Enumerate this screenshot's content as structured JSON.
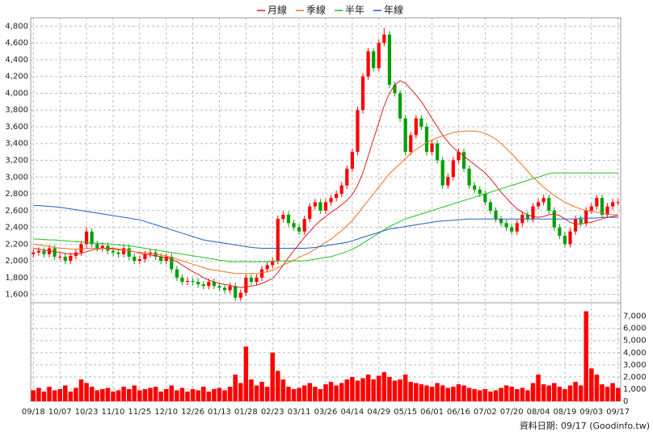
{
  "chart_data": {
    "type": "candlestick",
    "note": "資料日期: 09/17 (Goodinfo.tw)",
    "categories": [
      "09/18",
      null,
      null,
      null,
      null,
      "10/07",
      null,
      null,
      null,
      null,
      "10/23",
      null,
      null,
      null,
      null,
      "11/10",
      null,
      null,
      null,
      null,
      "11/25",
      null,
      null,
      null,
      null,
      "12/10",
      null,
      null,
      null,
      null,
      "12/26",
      null,
      null,
      null,
      null,
      "01/13",
      null,
      null,
      null,
      null,
      "01/28",
      null,
      null,
      null,
      null,
      "02/23",
      null,
      null,
      null,
      null,
      "03/11",
      null,
      null,
      null,
      null,
      "03/26",
      null,
      null,
      null,
      null,
      "04/14",
      null,
      null,
      null,
      null,
      "04/29",
      null,
      null,
      null,
      null,
      "05/15",
      null,
      null,
      null,
      null,
      "06/01",
      null,
      null,
      null,
      null,
      "06/16",
      null,
      null,
      null,
      null,
      "07/02",
      null,
      null,
      null,
      null,
      "07/20",
      null,
      null,
      null,
      null,
      "08/04",
      null,
      null,
      null,
      null,
      "08/19",
      null,
      null,
      null,
      null,
      "09/03",
      null,
      null,
      null,
      null,
      "09/17"
    ],
    "up_color": "#ff0000",
    "down_color": "#00a000",
    "ohlc": {
      "open": [
        2080,
        2100,
        2120,
        2080,
        2150,
        2050,
        2050,
        2000,
        2060,
        2100,
        2200,
        2350,
        2200,
        2150,
        2180,
        2120,
        2100,
        2080,
        2150,
        2050,
        2000,
        2020,
        2080,
        2100,
        2050,
        2000,
        2050,
        1900,
        1800,
        1750,
        1760,
        1750,
        1720,
        1700,
        1750,
        1700,
        1680,
        1650,
        1700,
        1560,
        1620,
        1800,
        1750,
        1800,
        1900,
        1950,
        2000,
        2500,
        2550,
        2450,
        2400,
        2350,
        2500,
        2650,
        2700,
        2600,
        2700,
        2750,
        2800,
        2900,
        3100,
        3300,
        3800,
        4200,
        4500,
        4300,
        4600,
        4700,
        4100,
        4000,
        3700,
        3300,
        3500,
        3700,
        3600,
        3300,
        3400,
        3200,
        2900,
        3000,
        3200,
        3300,
        3100,
        2900,
        2850,
        2800,
        2700,
        2600,
        2500,
        2450,
        2400,
        2350,
        2450,
        2550,
        2500,
        2650,
        2700,
        2750,
        2600,
        2400,
        2300,
        2200,
        2350,
        2500,
        2450,
        2600,
        2650,
        2750,
        2550,
        2650,
        2700
      ],
      "high": [
        2140,
        2160,
        2160,
        2190,
        2190,
        2090,
        2090,
        2100,
        2140,
        2240,
        2400,
        2390,
        2240,
        2220,
        2220,
        2160,
        2140,
        2190,
        2190,
        2090,
        2060,
        2120,
        2140,
        2140,
        2090,
        2090,
        2090,
        1940,
        1840,
        1800,
        1800,
        1790,
        1760,
        1790,
        1790,
        1740,
        1720,
        1740,
        1740,
        1660,
        1840,
        1840,
        1840,
        1940,
        1990,
        2040,
        2540,
        2590,
        2590,
        2490,
        2440,
        2540,
        2690,
        2740,
        2740,
        2740,
        2790,
        2840,
        2940,
        3140,
        3340,
        3840,
        4240,
        4540,
        4540,
        4640,
        4780,
        4740,
        4140,
        4040,
        3740,
        3540,
        3740,
        3740,
        3640,
        3440,
        3440,
        3240,
        3040,
        3240,
        3340,
        3340,
        3140,
        2940,
        2890,
        2840,
        2740,
        2640,
        2540,
        2490,
        2440,
        2490,
        2590,
        2590,
        2690,
        2740,
        2790,
        2790,
        2640,
        2440,
        2340,
        2390,
        2540,
        2540,
        2640,
        2690,
        2790,
        2790,
        2690,
        2740,
        2740
      ],
      "low": [
        2040,
        2060,
        2040,
        2040,
        2010,
        2010,
        1960,
        1960,
        2020,
        2060,
        2160,
        2160,
        2110,
        2110,
        2080,
        2060,
        2040,
        2040,
        2010,
        1960,
        1960,
        1980,
        2040,
        2010,
        1960,
        1960,
        1860,
        1760,
        1710,
        1710,
        1710,
        1680,
        1660,
        1660,
        1660,
        1640,
        1610,
        1610,
        1520,
        1520,
        1580,
        1710,
        1710,
        1760,
        1860,
        1910,
        1960,
        2460,
        2410,
        2360,
        2310,
        2310,
        2460,
        2610,
        2560,
        2560,
        2660,
        2710,
        2760,
        2860,
        3060,
        3260,
        3760,
        4160,
        4260,
        4260,
        4560,
        4060,
        3960,
        3660,
        3260,
        3260,
        3460,
        3560,
        3260,
        3260,
        3160,
        2860,
        2860,
        2960,
        3160,
        3060,
        2860,
        2810,
        2760,
        2660,
        2560,
        2460,
        2410,
        2360,
        2310,
        2310,
        2410,
        2460,
        2460,
        2610,
        2660,
        2560,
        2360,
        2260,
        2160,
        2160,
        2310,
        2410,
        2410,
        2560,
        2610,
        2510,
        2510,
        2610,
        2660
      ],
      "close": [
        2100,
        2120,
        2080,
        2150,
        2050,
        2050,
        2000,
        2060,
        2100,
        2200,
        2350,
        2200,
        2150,
        2180,
        2120,
        2100,
        2080,
        2150,
        2050,
        2000,
        2020,
        2080,
        2100,
        2050,
        2000,
        2050,
        1900,
        1800,
        1750,
        1760,
        1750,
        1720,
        1700,
        1750,
        1700,
        1680,
        1650,
        1700,
        1560,
        1620,
        1800,
        1750,
        1800,
        1900,
        1950,
        2000,
        2500,
        2550,
        2450,
        2400,
        2350,
        2500,
        2650,
        2700,
        2600,
        2700,
        2750,
        2800,
        2900,
        3100,
        3300,
        3800,
        4200,
        4500,
        4300,
        4600,
        4700,
        4100,
        4000,
        3700,
        3300,
        3500,
        3700,
        3600,
        3300,
        3400,
        3200,
        2900,
        3000,
        3200,
        3300,
        3100,
        2900,
        2850,
        2800,
        2700,
        2600,
        2500,
        2450,
        2400,
        2350,
        2450,
        2550,
        2500,
        2650,
        2700,
        2750,
        2600,
        2400,
        2300,
        2200,
        2350,
        2500,
        2450,
        2600,
        2650,
        2750,
        2550,
        2650,
        2700,
        2700
      ]
    },
    "series": [
      {
        "name": "月線",
        "color": "#e02020",
        "values": [
          2150,
          2140,
          2130,
          2120,
          2110,
          2100,
          2090,
          2080,
          2080,
          2090,
          2110,
          2130,
          2140,
          2150,
          2150,
          2150,
          2140,
          2130,
          2120,
          2110,
          2090,
          2080,
          2070,
          2060,
          2050,
          2040,
          2020,
          1990,
          1950,
          1910,
          1870,
          1840,
          1800,
          1770,
          1750,
          1730,
          1720,
          1710,
          1690,
          1680,
          1690,
          1700,
          1710,
          1730,
          1760,
          1790,
          1860,
          1950,
          2040,
          2120,
          2200,
          2280,
          2350,
          2420,
          2480,
          2530,
          2580,
          2620,
          2670,
          2720,
          2790,
          2900,
          3050,
          3250,
          3450,
          3650,
          3850,
          4000,
          4100,
          4150,
          4120,
          4050,
          3980,
          3900,
          3800,
          3700,
          3600,
          3500,
          3420,
          3350,
          3300,
          3250,
          3200,
          3150,
          3100,
          3050,
          2980,
          2900,
          2820,
          2750,
          2680,
          2620,
          2580,
          2550,
          2530,
          2520,
          2530,
          2550,
          2560,
          2540,
          2500,
          2460,
          2440,
          2440,
          2450,
          2460,
          2480,
          2500,
          2520,
          2530,
          2540
        ]
      },
      {
        "name": "季線",
        "color": "#f07020",
        "values": [
          2200,
          2190,
          2180,
          2170,
          2160,
          2150,
          2150,
          2140,
          2140,
          2140,
          2150,
          2150,
          2150,
          2150,
          2140,
          2140,
          2130,
          2130,
          2120,
          2110,
          2100,
          2100,
          2090,
          2080,
          2070,
          2060,
          2040,
          2020,
          2000,
          1980,
          1960,
          1940,
          1920,
          1900,
          1890,
          1880,
          1870,
          1860,
          1850,
          1850,
          1850,
          1850,
          1850,
          1860,
          1870,
          1890,
          1920,
          1950,
          1980,
          2010,
          2040,
          2070,
          2100,
          2140,
          2180,
          2220,
          2260,
          2310,
          2360,
          2420,
          2480,
          2560,
          2640,
          2720,
          2800,
          2880,
          2960,
          3040,
          3100,
          3160,
          3220,
          3280,
          3330,
          3370,
          3410,
          3440,
          3470,
          3490,
          3510,
          3530,
          3540,
          3550,
          3550,
          3550,
          3540,
          3520,
          3490,
          3450,
          3400,
          3340,
          3280,
          3210,
          3140,
          3070,
          3000,
          2940,
          2880,
          2830,
          2780,
          2740,
          2700,
          2670,
          2640,
          2620,
          2600,
          2590,
          2580,
          2570,
          2560,
          2550,
          2550
        ]
      },
      {
        "name": "半年",
        "color": "#20c020",
        "values": [
          2260,
          2260,
          2255,
          2250,
          2250,
          2245,
          2240,
          2235,
          2230,
          2225,
          2220,
          2215,
          2210,
          2205,
          2200,
          2195,
          2190,
          2185,
          2180,
          2170,
          2160,
          2150,
          2140,
          2130,
          2120,
          2110,
          2100,
          2090,
          2080,
          2070,
          2060,
          2050,
          2040,
          2030,
          2020,
          2010,
          2000,
          1990,
          1990,
          1990,
          1990,
          1990,
          1990,
          1990,
          1990,
          1990,
          2000,
          2000,
          2000,
          2000,
          2000,
          2000,
          2010,
          2020,
          2030,
          2040,
          2050,
          2070,
          2090,
          2110,
          2140,
          2170,
          2210,
          2250,
          2290,
          2330,
          2370,
          2410,
          2440,
          2470,
          2500,
          2520,
          2540,
          2560,
          2580,
          2600,
          2620,
          2640,
          2660,
          2680,
          2700,
          2720,
          2740,
          2760,
          2780,
          2800,
          2820,
          2840,
          2860,
          2880,
          2900,
          2920,
          2940,
          2960,
          2980,
          3000,
          3020,
          3040,
          3050,
          3050,
          3050,
          3050,
          3050,
          3050,
          3050,
          3050,
          3050,
          3050,
          3050,
          3050,
          3050
        ]
      },
      {
        "name": "年線",
        "color": "#2060c0",
        "values": [
          2660,
          2660,
          2655,
          2650,
          2645,
          2640,
          2630,
          2620,
          2610,
          2600,
          2590,
          2580,
          2570,
          2560,
          2550,
          2540,
          2530,
          2520,
          2510,
          2500,
          2490,
          2470,
          2450,
          2430,
          2410,
          2390,
          2370,
          2350,
          2330,
          2310,
          2290,
          2270,
          2250,
          2240,
          2230,
          2220,
          2210,
          2200,
          2190,
          2180,
          2170,
          2160,
          2155,
          2150,
          2150,
          2150,
          2150,
          2150,
          2150,
          2150,
          2150,
          2150,
          2155,
          2160,
          2170,
          2180,
          2190,
          2200,
          2210,
          2220,
          2240,
          2260,
          2280,
          2300,
          2320,
          2340,
          2360,
          2380,
          2390,
          2400,
          2410,
          2420,
          2430,
          2440,
          2450,
          2460,
          2470,
          2475,
          2480,
          2485,
          2490,
          2495,
          2500,
          2500,
          2500,
          2500,
          2500,
          2500,
          2500,
          2500,
          2500,
          2500,
          2500,
          2500,
          2500,
          2500,
          2500,
          2500,
          2500,
          2500,
          2500,
          2500,
          2500,
          2510,
          2510,
          2510,
          2510,
          2520,
          2520,
          2520,
          2520
        ]
      }
    ],
    "volume": {
      "axis": "y2",
      "color": "#ff0000",
      "values": [
        900,
        1100,
        800,
        1200,
        900,
        1000,
        1300,
        800,
        1100,
        1800,
        1500,
        1200,
        900,
        1000,
        1100,
        800,
        900,
        1200,
        1000,
        1300,
        900,
        1000,
        1100,
        1200,
        800,
        1000,
        1300,
        900,
        1100,
        800,
        1000,
        900,
        1200,
        800,
        1000,
        1100,
        900,
        1200,
        2200,
        1500,
        4500,
        1800,
        1300,
        1600,
        1200,
        4000,
        2500,
        1800,
        1200,
        1000,
        1100,
        1300,
        1500,
        1200,
        1000,
        1400,
        1600,
        1300,
        1500,
        1800,
        2000,
        1700,
        1900,
        2200,
        1800,
        2100,
        2400,
        2000,
        1700,
        1800,
        2200,
        1600,
        1500,
        1400,
        1300,
        1200,
        1500,
        1300,
        1100,
        1200,
        1400,
        1300,
        1100,
        1000,
        900,
        1000,
        800,
        900,
        1100,
        1300,
        1200,
        1000,
        1100,
        900,
        1500,
        2200,
        1400,
        1300,
        1500,
        1200,
        1000,
        1300,
        1600,
        1300,
        7400,
        2700,
        2200,
        1400,
        1200,
        1500,
        1100
      ]
    },
    "ylim": [
      1500,
      4900
    ],
    "yticks": [
      {
        "value": 1600,
        "label": "1,600"
      },
      {
        "value": 1800,
        "label": "1,800"
      },
      {
        "value": 2000,
        "label": "2,000"
      },
      {
        "value": 2200,
        "label": "2,200"
      },
      {
        "value": 2400,
        "label": "2,400"
      },
      {
        "value": 2600,
        "label": "2,600"
      },
      {
        "value": 2800,
        "label": "2,800"
      },
      {
        "value": 3000,
        "label": "3,000"
      },
      {
        "value": 3200,
        "label": "3,200"
      },
      {
        "value": 3400,
        "label": "3,400"
      },
      {
        "value": 3600,
        "label": "3,600"
      },
      {
        "value": 3800,
        "label": "3,800"
      },
      {
        "value": 4000,
        "label": "4,000"
      },
      {
        "value": 4200,
        "label": "4,200"
      },
      {
        "value": 4400,
        "label": "4,400"
      },
      {
        "value": 4600,
        "label": "4,600"
      },
      {
        "value": 4800,
        "label": "4,800"
      }
    ],
    "y2lim": [
      0,
      8100
    ],
    "y2ticks": [
      0,
      {
        "value": 1000,
        "label": "1,000"
      },
      {
        "value": 2000,
        "label": "2,000"
      },
      {
        "value": 3000,
        "label": "3,000"
      },
      {
        "value": 4000,
        "label": "4,000"
      },
      {
        "value": 5000,
        "label": "5,000"
      },
      {
        "value": 6000,
        "label": "6,000"
      },
      {
        "value": 7000,
        "label": "7,000"
      }
    ],
    "grid": true
  }
}
